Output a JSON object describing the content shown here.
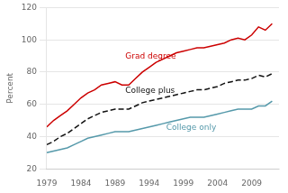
{
  "chart_data": {
    "type": "line",
    "ylabel": "Percent",
    "x": [
      1979,
      1980,
      1981,
      1982,
      1983,
      1984,
      1985,
      1986,
      1987,
      1988,
      1989,
      1990,
      1991,
      1992,
      1993,
      1994,
      1995,
      1996,
      1997,
      1998,
      1999,
      2000,
      2001,
      2002,
      2003,
      2004,
      2005,
      2006,
      2007,
      2008,
      2009,
      2010,
      2011,
      2012
    ],
    "series": [
      {
        "name": "Grad degree",
        "color": "#cc0000",
        "line_style": "solid",
        "values": [
          46,
          50,
          53,
          56,
          60,
          64,
          67,
          69,
          72,
          73,
          74,
          72,
          72,
          76,
          80,
          83,
          86,
          88,
          90,
          92,
          93,
          94,
          95,
          95,
          96,
          97,
          98,
          100,
          101,
          100,
          103,
          108,
          106,
          110
        ]
      },
      {
        "name": "College plus",
        "color": "#111111",
        "line_style": "dashed",
        "values": [
          35,
          37,
          40,
          42,
          45,
          48,
          51,
          53,
          55,
          56,
          57,
          57,
          57,
          59,
          61,
          62,
          63,
          64,
          65,
          66,
          67,
          68,
          69,
          69,
          70,
          71,
          73,
          74,
          75,
          75,
          76,
          78,
          77,
          79
        ]
      },
      {
        "name": "College only",
        "color": "#5599aa",
        "line_style": "solid",
        "values": [
          30,
          31,
          32,
          33,
          35,
          37,
          39,
          40,
          41,
          42,
          43,
          43,
          43,
          44,
          45,
          46,
          47,
          48,
          49,
          50,
          51,
          52,
          52,
          52,
          53,
          54,
          55,
          56,
          57,
          57,
          57,
          59,
          59,
          62
        ]
      }
    ],
    "annotations": [
      {
        "text": "Grad degree",
        "x": 1990.5,
        "y": 87,
        "color": "#cc0000"
      },
      {
        "text": "College plus",
        "x": 1990.5,
        "y": 66,
        "color": "#111111"
      },
      {
        "text": "College only",
        "x": 1996.5,
        "y": 43,
        "color": "#5599aa"
      }
    ],
    "xlim": [
      1979,
      2013
    ],
    "xticks": [
      1979,
      1984,
      1989,
      1994,
      1999,
      2004,
      2009
    ],
    "ylim": [
      20,
      120
    ],
    "yticks": [
      20,
      40,
      60,
      80,
      100,
      120
    ],
    "grid": true
  }
}
